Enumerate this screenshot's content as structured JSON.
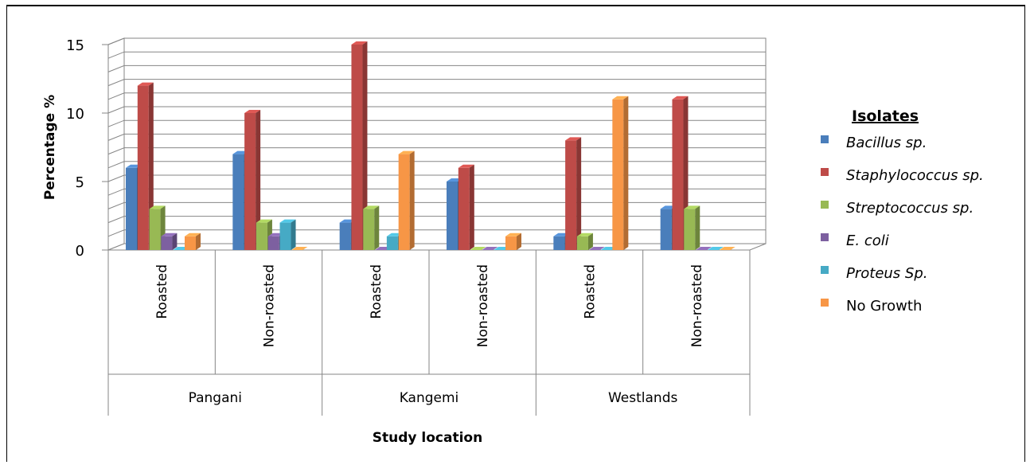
{
  "chart_data": {
    "type": "bar",
    "style": "3d-clustered-column",
    "ylabel": "Percentage %",
    "xlabel": "Study location",
    "ylim": [
      0,
      15
    ],
    "y_ticks": [
      "0",
      "5",
      "10",
      "15"
    ],
    "groups": [
      "Pangani",
      "Kangemi",
      "Westlands"
    ],
    "categories": [
      "Roasted",
      "Non-roasted",
      "Roasted",
      "Non-roasted",
      "Roasted",
      "Non-roasted"
    ],
    "legend_title": "Isolates",
    "legend_position": "right",
    "grid": true,
    "series": [
      {
        "name": "Bacillus sp.",
        "italic": true,
        "color": "#4a7ebb",
        "values": [
          6,
          7,
          2,
          5,
          1,
          3
        ]
      },
      {
        "name": "Staphylococcus sp.",
        "italic": true,
        "color": "#be4b48",
        "values": [
          12,
          10,
          15,
          6,
          8,
          11
        ]
      },
      {
        "name": "Streptococcus sp.",
        "italic": true,
        "color": "#98b954",
        "values": [
          3,
          2,
          3,
          0,
          1,
          3
        ]
      },
      {
        "name": "E. coli",
        "italic": true,
        "color": "#7d60a0",
        "values": [
          1,
          1,
          0,
          0,
          0,
          0
        ]
      },
      {
        "name": "Proteus Sp.",
        "italic": true,
        "color": "#46aac5",
        "values": [
          0,
          2,
          1,
          0,
          0,
          0
        ]
      },
      {
        "name": "No Growth",
        "italic": false,
        "color": "#f79646",
        "values": [
          1,
          0,
          7,
          1,
          11,
          0
        ]
      }
    ]
  }
}
